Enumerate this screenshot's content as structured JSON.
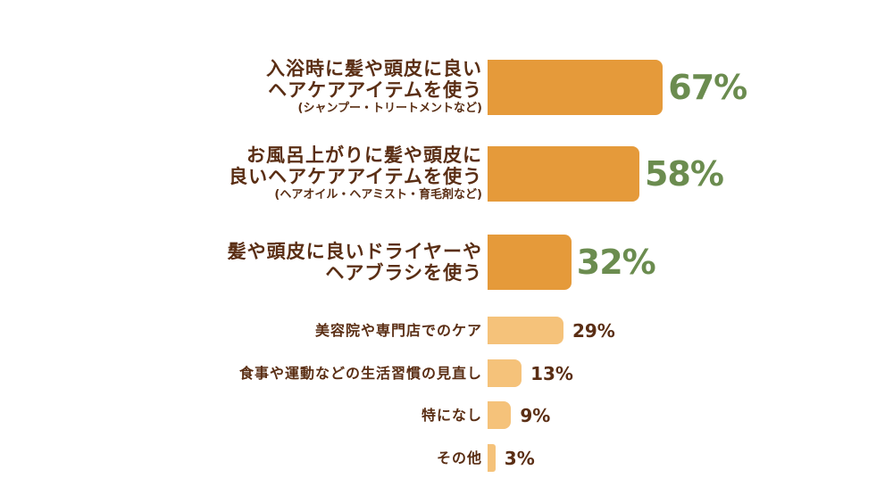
{
  "chart_data": {
    "type": "bar",
    "orientation": "horizontal",
    "categories": [
      [
        "入浴時に髪や頭皮に良い",
        "ヘアケアアイテムを使う",
        "(シャンプー・トリートメントなど)"
      ],
      [
        "お風呂上がりに髪や頭皮に",
        "良いヘアケアアイテムを使う",
        "(ヘアオイル・ヘアミスト・育毛剤など)"
      ],
      [
        "髪や頭皮に良いドライヤーや",
        "ヘアブラシを使う"
      ],
      [
        "美容院や専門店でのケア"
      ],
      [
        "食事や運動などの生活習慣の見直し"
      ],
      [
        "特になし"
      ],
      [
        "その他"
      ]
    ],
    "values": [
      67,
      58,
      32,
      29,
      13,
      9,
      3
    ],
    "value_labels": [
      "67%",
      "58%",
      "32%",
      "29%",
      "13%",
      "9%",
      "3%"
    ],
    "highlight_top": 3,
    "colors": {
      "highlight_bar": "#e59a3a",
      "normal_bar": "#f5c27a",
      "highlight_value": "#6b8c4f",
      "normal_value": "#5a2e14",
      "label": "#5a2e14"
    }
  }
}
